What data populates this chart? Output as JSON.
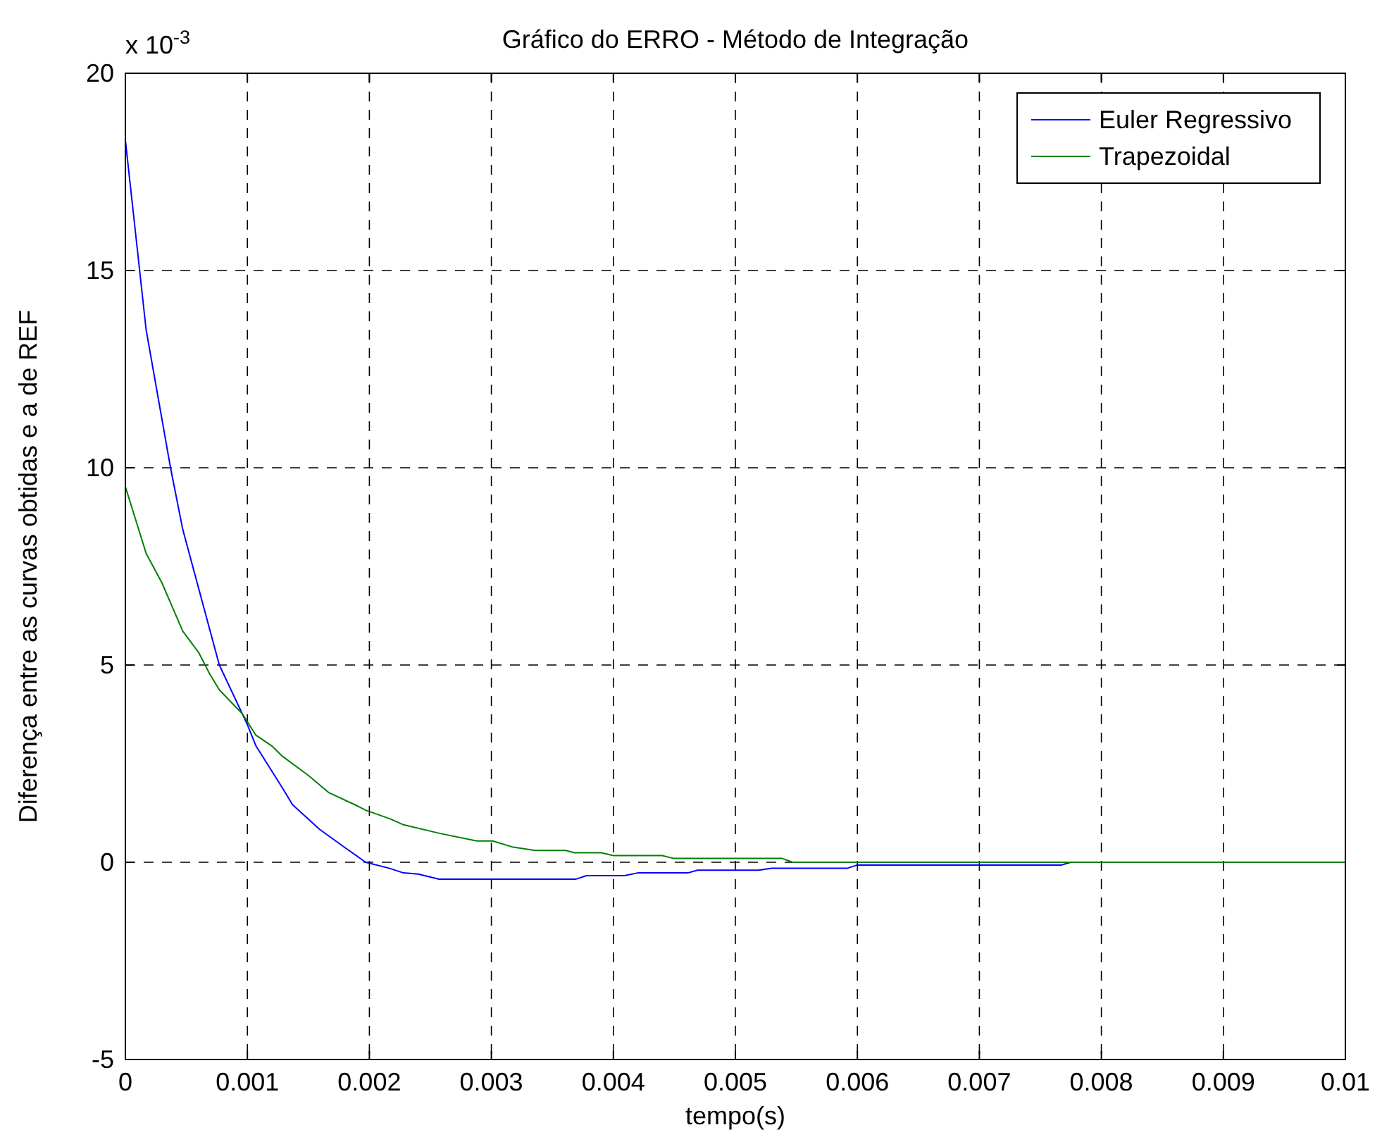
{
  "chart_data": {
    "type": "line",
    "title": "Gráfico do ERRO - Método de Integração",
    "xlabel": "tempo(s)",
    "ylabel": "Diferença entre as curvas obtidas e a de REF",
    "annotations": [
      "x 10$^{-3}$"
    ],
    "xlim": [
      0,
      0.01
    ],
    "xticks": [
      0,
      0.001,
      0.002,
      0.003,
      0.004,
      0.005,
      0.006,
      0.007,
      0.008,
      0.009,
      0.01
    ],
    "ylim": [
      -5,
      20
    ],
    "yticks": [
      -5,
      0,
      5,
      10,
      15,
      20
    ],
    "grid": true,
    "legend": "top right",
    "line_style": "solid",
    "marker": "none",
    "series": [
      {
        "name": "Euler Regressivo",
        "color": "#0000ff",
        "x": [
          0,
          0.00017,
          0.00037,
          0.00047,
          0.00077,
          0.001,
          0.00107,
          0.00129,
          0.00137,
          0.00159,
          0.0018,
          0.00197,
          0.00216,
          0.00228,
          0.0024,
          0.00257,
          0.00369,
          0.00378,
          0.00409,
          0.0042,
          0.00461,
          0.00469,
          0.00519,
          0.0053,
          0.00592,
          0.006,
          0.00767,
          0.00775,
          0.01
        ],
        "values": [
          18.3,
          13.5,
          10,
          8.44,
          5,
          3.49,
          2.95,
          1.87,
          1.46,
          0.84,
          0.37,
          0,
          -0.15,
          -0.27,
          -0.3,
          -0.43,
          -0.43,
          -0.34,
          -0.34,
          -0.27,
          -0.27,
          -0.2,
          -0.2,
          -0.15,
          -0.15,
          -0.07,
          -0.07,
          0,
          0
        ]
      },
      {
        "name": "Trapezoidal",
        "color": "#008000",
        "x": [
          0,
          0.00017,
          0.0003,
          0.00047,
          0.0006,
          0.00069,
          0.00077,
          0.00096,
          0.00107,
          0.0012,
          0.00129,
          0.0015,
          0.00167,
          0.00188,
          0.00197,
          0.00217,
          0.00228,
          0.00258,
          0.00288,
          0.00301,
          0.00317,
          0.00336,
          0.00361,
          0.00368,
          0.0039,
          0.004,
          0.0044,
          0.00449,
          0.00538,
          0.00547,
          0.01
        ],
        "values": [
          9.52,
          7.83,
          7.08,
          5.86,
          5.32,
          4.78,
          4.37,
          3.76,
          3.22,
          2.95,
          2.68,
          2.2,
          1.76,
          1.46,
          1.32,
          1.1,
          0.95,
          0.73,
          0.54,
          0.54,
          0.39,
          0.3,
          0.3,
          0.24,
          0.24,
          0.17,
          0.17,
          0.1,
          0.1,
          0,
          0
        ]
      }
    ]
  }
}
